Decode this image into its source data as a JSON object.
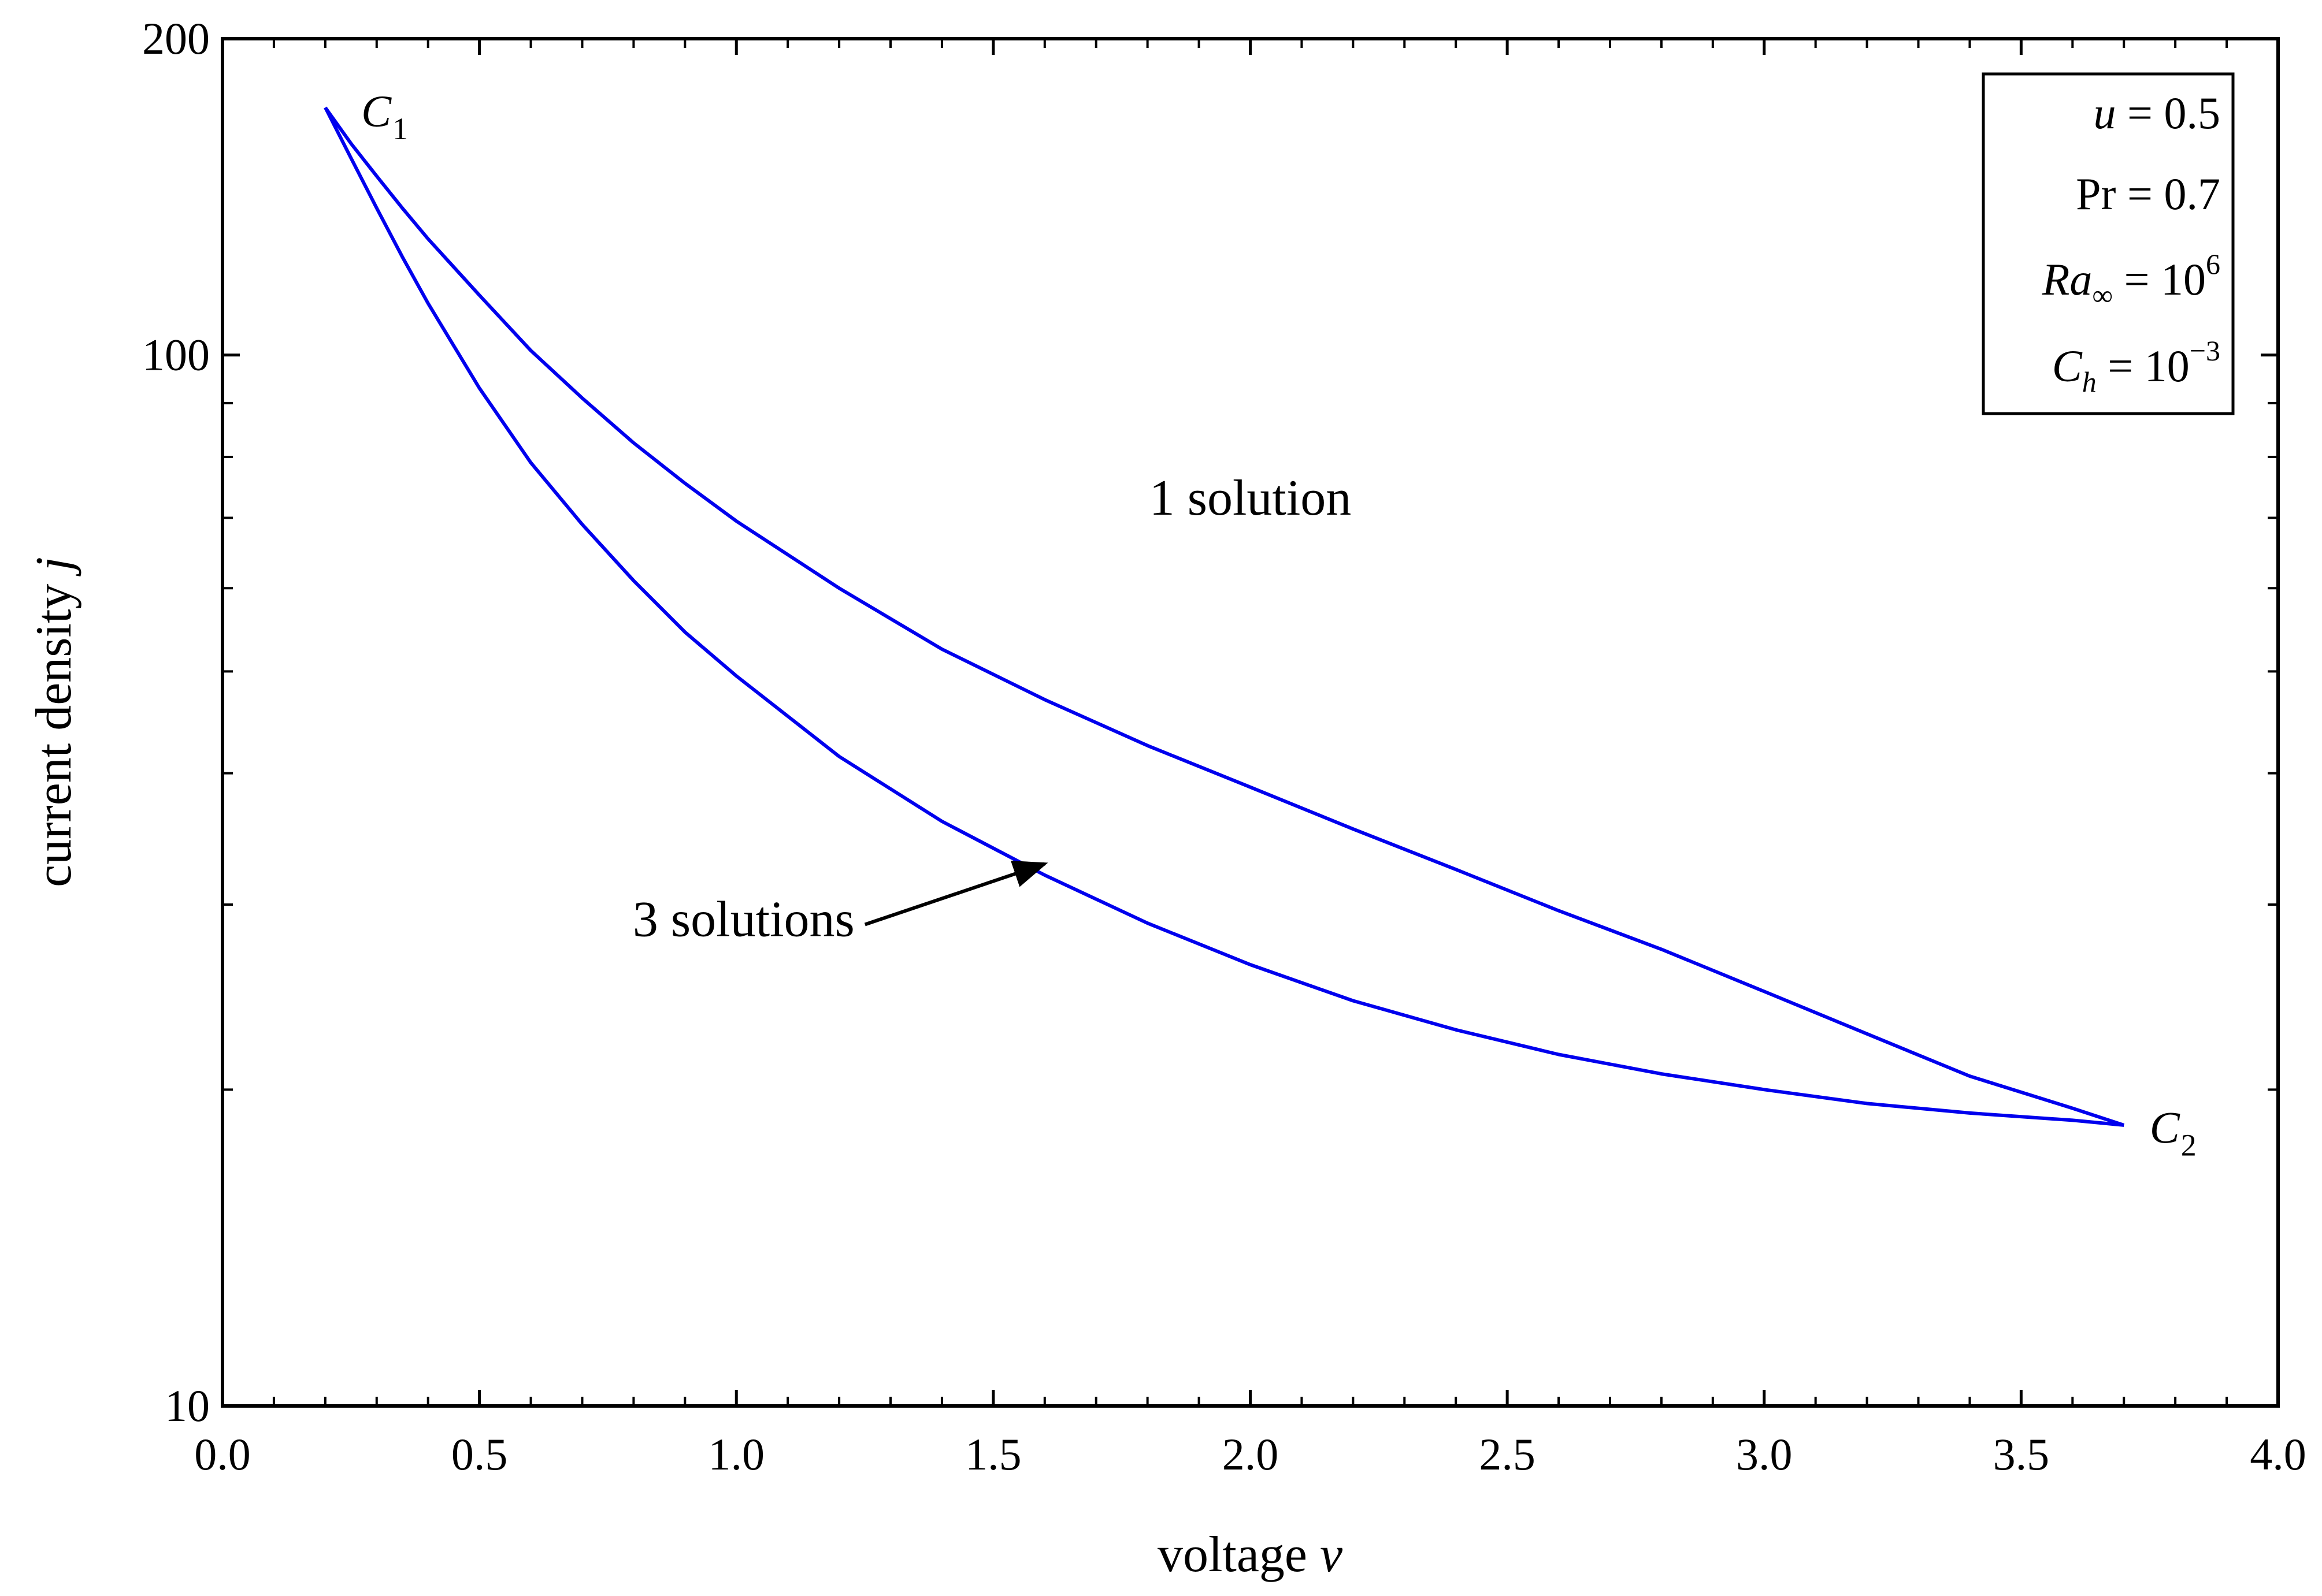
{
  "chart_data": {
    "type": "line",
    "xlabel": {
      "text": "voltage",
      "var": "v"
    },
    "ylabel": {
      "text": "current density",
      "var": "j"
    },
    "xlim": [
      0.0,
      4.0
    ],
    "ylim": [
      10,
      200
    ],
    "y_scale": "log",
    "grid": false,
    "x_ticks": [
      {
        "value": 0.0,
        "label": "0.0"
      },
      {
        "value": 0.5,
        "label": "0.5"
      },
      {
        "value": 1.0,
        "label": "1.0"
      },
      {
        "value": 1.5,
        "label": "1.5"
      },
      {
        "value": 2.0,
        "label": "2.0"
      },
      {
        "value": 2.5,
        "label": "2.5"
      },
      {
        "value": 3.0,
        "label": "3.0"
      },
      {
        "value": 3.5,
        "label": "3.5"
      },
      {
        "value": 4.0,
        "label": "4.0"
      }
    ],
    "y_ticks": [
      {
        "value": 10,
        "label": "10"
      },
      {
        "value": 100,
        "label": "100"
      },
      {
        "value": 200,
        "label": "200"
      }
    ],
    "series": [
      {
        "color": "#0000ee",
        "points": [
          [
            0.2,
            172
          ],
          [
            0.25,
            159
          ],
          [
            0.3,
            148
          ],
          [
            0.35,
            138
          ],
          [
            0.4,
            129
          ],
          [
            0.5,
            114
          ],
          [
            0.6,
            101
          ],
          [
            0.7,
            91
          ],
          [
            0.8,
            82.5
          ],
          [
            0.9,
            75.5
          ],
          [
            1.0,
            69.5
          ],
          [
            1.2,
            60
          ],
          [
            1.4,
            52.5
          ],
          [
            1.6,
            47
          ],
          [
            1.8,
            42.5
          ],
          [
            2.0,
            38.8
          ],
          [
            2.2,
            35.4
          ],
          [
            2.4,
            32.4
          ],
          [
            2.6,
            29.6
          ],
          [
            2.8,
            27.2
          ],
          [
            3.0,
            24.8
          ],
          [
            3.2,
            22.6
          ],
          [
            3.4,
            20.6
          ],
          [
            3.6,
            19.2
          ],
          [
            3.7,
            18.5
          ]
        ]
      },
      {
        "color": "#0000ee",
        "points": [
          [
            0.2,
            172
          ],
          [
            0.25,
            154
          ],
          [
            0.3,
            138
          ],
          [
            0.35,
            124
          ],
          [
            0.4,
            112
          ],
          [
            0.5,
            93
          ],
          [
            0.6,
            79
          ],
          [
            0.7,
            69
          ],
          [
            0.8,
            61
          ],
          [
            0.9,
            54.5
          ],
          [
            1.0,
            49.5
          ],
          [
            1.2,
            41.5
          ],
          [
            1.4,
            36
          ],
          [
            1.6,
            32
          ],
          [
            1.8,
            28.8
          ],
          [
            2.0,
            26.3
          ],
          [
            2.2,
            24.3
          ],
          [
            2.4,
            22.8
          ],
          [
            2.6,
            21.6
          ],
          [
            2.8,
            20.7
          ],
          [
            3.0,
            20.0
          ],
          [
            3.2,
            19.4
          ],
          [
            3.4,
            19.0
          ],
          [
            3.6,
            18.7
          ],
          [
            3.7,
            18.5
          ]
        ]
      }
    ],
    "annotations": [
      {
        "id": "c1",
        "text": "C",
        "sub": "1",
        "at": [
          0.27,
          165
        ]
      },
      {
        "id": "c2",
        "text": "C",
        "sub": "2",
        "at": [
          3.75,
          17.8
        ]
      },
      {
        "id": "one",
        "text": "1 solution",
        "at": [
          2.0,
          70.5
        ]
      },
      {
        "id": "three",
        "text": "3 solutions",
        "at": [
          1.23,
          28.0
        ],
        "arrow_to": [
          1.6,
          32.8
        ]
      }
    ],
    "parameters": [
      {
        "name": "u",
        "italic": true,
        "value": "0.5"
      },
      {
        "name": "Pr",
        "italic": false,
        "value": "0.7"
      },
      {
        "name": "Ra",
        "italic": true,
        "sub": "∞",
        "value": "10",
        "sup": "6"
      },
      {
        "name": "C",
        "italic": true,
        "sub": "h",
        "value": "10",
        "sup": "−3"
      }
    ]
  }
}
